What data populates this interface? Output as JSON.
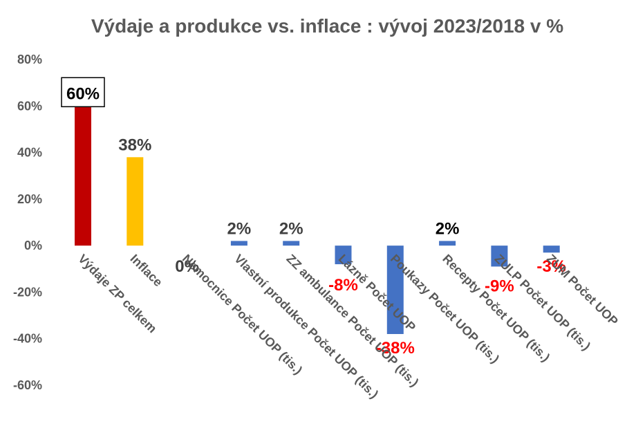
{
  "chart_data": {
    "type": "bar",
    "title": "Výdaje a produkce vs. inflace : vývoj 2023/2018 v %",
    "xlabel": "",
    "ylabel": "",
    "ylim": [
      -60,
      80
    ],
    "yticks": [
      80,
      60,
      40,
      20,
      0,
      -20,
      -40,
      -60
    ],
    "ytick_labels": [
      "80%",
      "60%",
      "40%",
      "20%",
      "0%",
      "-20%",
      "-40%",
      "-60%"
    ],
    "grid": false,
    "legend": "none",
    "categories": [
      "Výdaje ZP celkem",
      "Inflace",
      "Nemocnice Počet UOP (tis.)",
      "Vlastní produkce Počet UOP (tis.)",
      "ZZ ambulance Počet UOP (tis.)",
      "Lázně Počet UOP",
      "Poukazy Počet UOP (tis.)",
      "Recepty Počet UOP (tis.)",
      "ZULP Počet UOP (tis.)",
      "ZUM Počet UOP"
    ],
    "values": [
      60,
      38,
      0,
      2,
      2,
      -8,
      -38,
      2,
      -9,
      -3
    ],
    "value_labels": [
      "60%",
      "38%",
      "0%",
      "2%",
      "2%",
      "-8%",
      "-38%",
      "2%",
      "-9%",
      "-3%"
    ],
    "bar_colors": [
      "#C00000",
      "#FFC000",
      "#4472C4",
      "#4472C4",
      "#4472C4",
      "#4472C4",
      "#4472C4",
      "#4472C4",
      "#4472C4",
      "#4472C4"
    ],
    "label_colors": [
      "#000000",
      "#404040",
      "#404040",
      "#404040",
      "#404040",
      "#FF0000",
      "#FF0000",
      "#000000",
      "#FF0000",
      "#FF0000"
    ],
    "boxed_label_index": 0
  }
}
